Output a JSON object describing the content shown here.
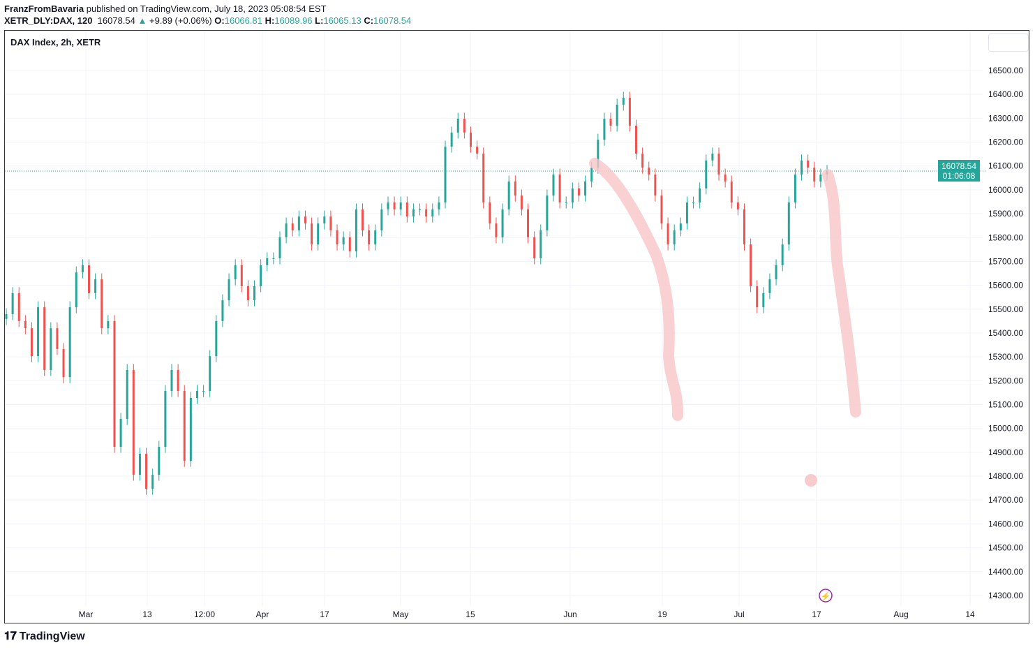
{
  "header": {
    "author": "FranzFromBavaria",
    "published": "published on TradingView.com, July 18, 2023 05:08:54 EST",
    "symbol": "XETR_DLY:DAX, 120",
    "last": "16078.54",
    "change": "+9.89 (+0.06%)",
    "o_label": "O:",
    "o": "16066.81",
    "h_label": "H:",
    "h": "16089.96",
    "l_label": "L:",
    "l": "16065.13",
    "c_label": "C:",
    "c": "16078.54"
  },
  "chart_title": "DAX Index, 2h, XETR",
  "price_label": {
    "price": "16078.54",
    "countdown": "01:06:08"
  },
  "brand": "TradingView",
  "colors": {
    "up": "#26a69a",
    "down": "#ef5350",
    "annotation": "#f7c5c8",
    "price_line": "#26a69a"
  },
  "chart_data": {
    "type": "candlestick",
    "y_ticks": [
      "16500.00",
      "16400.00",
      "16300.00",
      "16200.00",
      "16100.00",
      "16000.00",
      "15900.00",
      "15800.00",
      "15700.00",
      "15600.00",
      "15500.00",
      "15400.00",
      "15300.00",
      "15200.00",
      "15100.00",
      "15000.00",
      "14900.00",
      "14800.00",
      "14700.00",
      "14600.00",
      "14500.00",
      "14400.00",
      "14300.00"
    ],
    "ylim": [
      14300,
      16500
    ],
    "x_ticks": [
      "Mar",
      "13",
      "12:00",
      "Apr",
      "17",
      "May",
      "15",
      "Jun",
      "19",
      "Jul",
      "17",
      "Aug",
      "14"
    ],
    "closes": [
      15479,
      15567,
      15450,
      15420,
      15303,
      15508,
      15245,
      15420,
      15333,
      15215,
      15508,
      15654,
      15684,
      15567,
      15625,
      15420,
      15450,
      14923,
      15040,
      15245,
      14806,
      14894,
      14747,
      14806,
      14923,
      15157,
      15245,
      15157,
      14864,
      15128,
      15157,
      15157,
      15303,
      15450,
      15537,
      15625,
      15684,
      15596,
      15537,
      15596,
      15684,
      15713,
      15713,
      15801,
      15859,
      15830,
      15888,
      15859,
      15771,
      15859,
      15888,
      15830,
      15771,
      15801,
      15742,
      15918,
      15830,
      15771,
      15830,
      15918,
      15947,
      15918,
      15947,
      15888,
      15918,
      15918,
      15888,
      15918,
      15947,
      16181,
      16240,
      16298,
      16240,
      16181,
      16152,
      15947,
      15859,
      15801,
      15918,
      16035,
      15976,
      15918,
      15801,
      15713,
      15830,
      15976,
      16064,
      15947,
      15947,
      16006,
      15976,
      16035,
      16093,
      16210,
      16298,
      16269,
      16357,
      16386,
      16269,
      16152,
      16093,
      16064,
      15976,
      15859,
      15771,
      15830,
      15859,
      15947,
      15947,
      16006,
      16123,
      16152,
      16064,
      16035,
      15947,
      15918,
      15771,
      15596,
      15508,
      15567,
      15625,
      15684,
      15771,
      15947,
      16064,
      16123,
      16093,
      16035,
      16064,
      16079
    ],
    "last_price": 16078.54
  }
}
